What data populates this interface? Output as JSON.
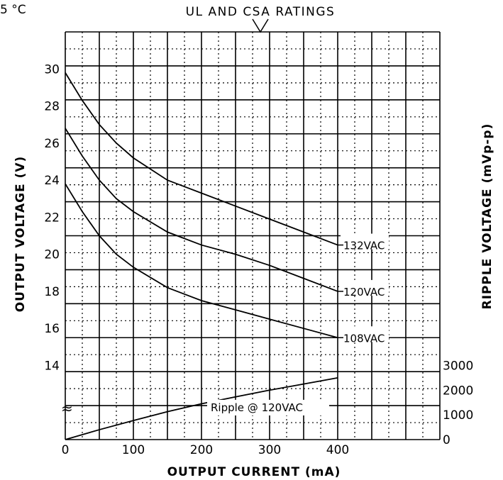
{
  "corner_label": "5 °C",
  "chart_data": {
    "type": "line",
    "title": "UL AND CSA RATINGS",
    "xlabel": "OUTPUT CURRENT (mA)",
    "ylabel": "OUTPUT VOLTAGE (V)",
    "y2label": "RIPPLE VOLTAGE (mVp-p)",
    "xlim": [
      0,
      550
    ],
    "ylim": [
      10,
      32
    ],
    "y2lim": [
      0,
      3000
    ],
    "x_ticks": [
      0,
      100,
      200,
      300,
      400
    ],
    "y_ticks": [
      14,
      16,
      18,
      20,
      22,
      24,
      26,
      28,
      30
    ],
    "y2_ticks": [
      0,
      1000,
      2000,
      3000
    ],
    "grid": true,
    "series": [
      {
        "name": "132VAC",
        "axis": "left",
        "x": [
          0,
          25,
          50,
          75,
          100,
          150,
          200,
          250,
          300,
          350,
          400
        ],
        "y": [
          29.8,
          28.3,
          27.0,
          26.0,
          25.2,
          24.0,
          23.3,
          22.6,
          21.9,
          21.2,
          20.5
        ]
      },
      {
        "name": "120VAC",
        "axis": "left",
        "x": [
          0,
          25,
          50,
          75,
          100,
          150,
          200,
          250,
          300,
          350,
          400
        ],
        "y": [
          26.8,
          25.3,
          24.0,
          23.0,
          22.3,
          21.2,
          20.5,
          20.0,
          19.4,
          18.7,
          18.0
        ]
      },
      {
        "name": "108VAC",
        "axis": "left",
        "x": [
          0,
          25,
          50,
          75,
          100,
          150,
          200,
          250,
          300,
          350,
          400
        ],
        "y": [
          23.8,
          22.3,
          21.0,
          20.0,
          19.3,
          18.2,
          17.5,
          17.0,
          16.5,
          16.0,
          15.5
        ]
      },
      {
        "name": "Ripple @ 120VAC",
        "axis": "right",
        "x": [
          0,
          50,
          100,
          150,
          200,
          250,
          300,
          350,
          400
        ],
        "y": [
          0,
          400,
          770,
          1130,
          1450,
          1730,
          2000,
          2250,
          2500
        ]
      }
    ],
    "annotations": [
      "132VAC",
      "120VAC",
      "108VAC",
      "Ripple @ 120VAC"
    ]
  }
}
